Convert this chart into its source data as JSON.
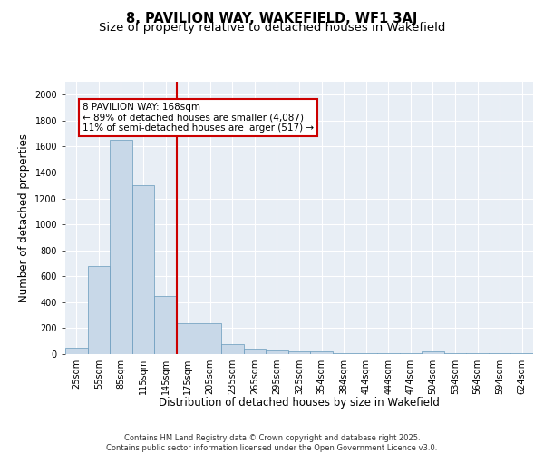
{
  "title1": "8, PAVILION WAY, WAKEFIELD, WF1 3AJ",
  "title2": "Size of property relative to detached houses in Wakefield",
  "xlabel": "Distribution of detached houses by size in Wakefield",
  "ylabel": "Number of detached properties",
  "categories": [
    "25sqm",
    "55sqm",
    "85sqm",
    "115sqm",
    "145sqm",
    "175sqm",
    "205sqm",
    "235sqm",
    "265sqm",
    "295sqm",
    "325sqm",
    "354sqm",
    "384sqm",
    "414sqm",
    "444sqm",
    "474sqm",
    "504sqm",
    "534sqm",
    "564sqm",
    "594sqm",
    "624sqm"
  ],
  "values": [
    50,
    680,
    1650,
    1300,
    450,
    240,
    240,
    80,
    42,
    28,
    22,
    22,
    5,
    5,
    5,
    5,
    20,
    5,
    5,
    5,
    5
  ],
  "bar_color": "#c8d8e8",
  "bar_edge_color": "#6699bb",
  "vline_color": "#cc0000",
  "annotation_text": "8 PAVILION WAY: 168sqm\n← 89% of detached houses are smaller (4,087)\n11% of semi-detached houses are larger (517) →",
  "box_color": "#cc0000",
  "ylim": [
    0,
    2100
  ],
  "yticks": [
    0,
    200,
    400,
    600,
    800,
    1000,
    1200,
    1400,
    1600,
    1800,
    2000
  ],
  "bg_color": "#e8eef5",
  "footnote": "Contains HM Land Registry data © Crown copyright and database right 2025.\nContains public sector information licensed under the Open Government Licence v3.0.",
  "title_fontsize": 10.5,
  "subtitle_fontsize": 9.5,
  "axis_label_fontsize": 8.5,
  "tick_fontsize": 7,
  "annot_fontsize": 7.5,
  "footnote_fontsize": 6
}
